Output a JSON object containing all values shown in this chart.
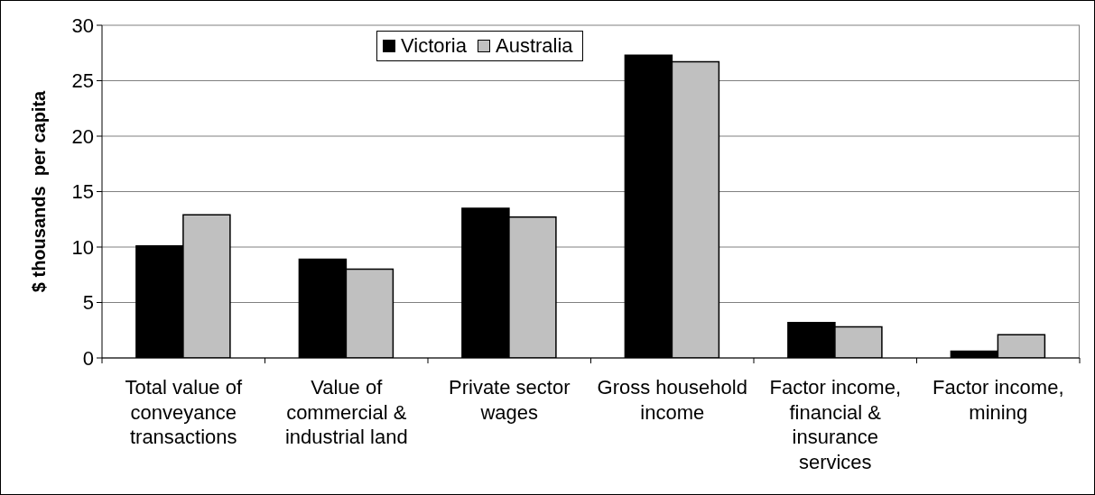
{
  "chart_data": {
    "type": "bar",
    "ylabel": "$ thousands  per capita",
    "categories": [
      "Total value of conveyance transactions",
      "Value of commercial & industrial land",
      "Private sector wages",
      "Gross household income",
      "Factor income, financial & insurance services",
      "Factor income, mining"
    ],
    "series": [
      {
        "name": "Victoria",
        "color": "#000000",
        "values": [
          10.1,
          8.9,
          13.5,
          27.3,
          3.2,
          0.6
        ]
      },
      {
        "name": "Australia",
        "color": "#c0c0c0",
        "values": [
          12.9,
          8.0,
          12.7,
          26.7,
          2.8,
          2.1
        ]
      }
    ],
    "ylim": [
      0,
      30
    ],
    "yticks": [
      0,
      5,
      10,
      15,
      20,
      25,
      30
    ],
    "grid": "y",
    "legend": "top"
  }
}
